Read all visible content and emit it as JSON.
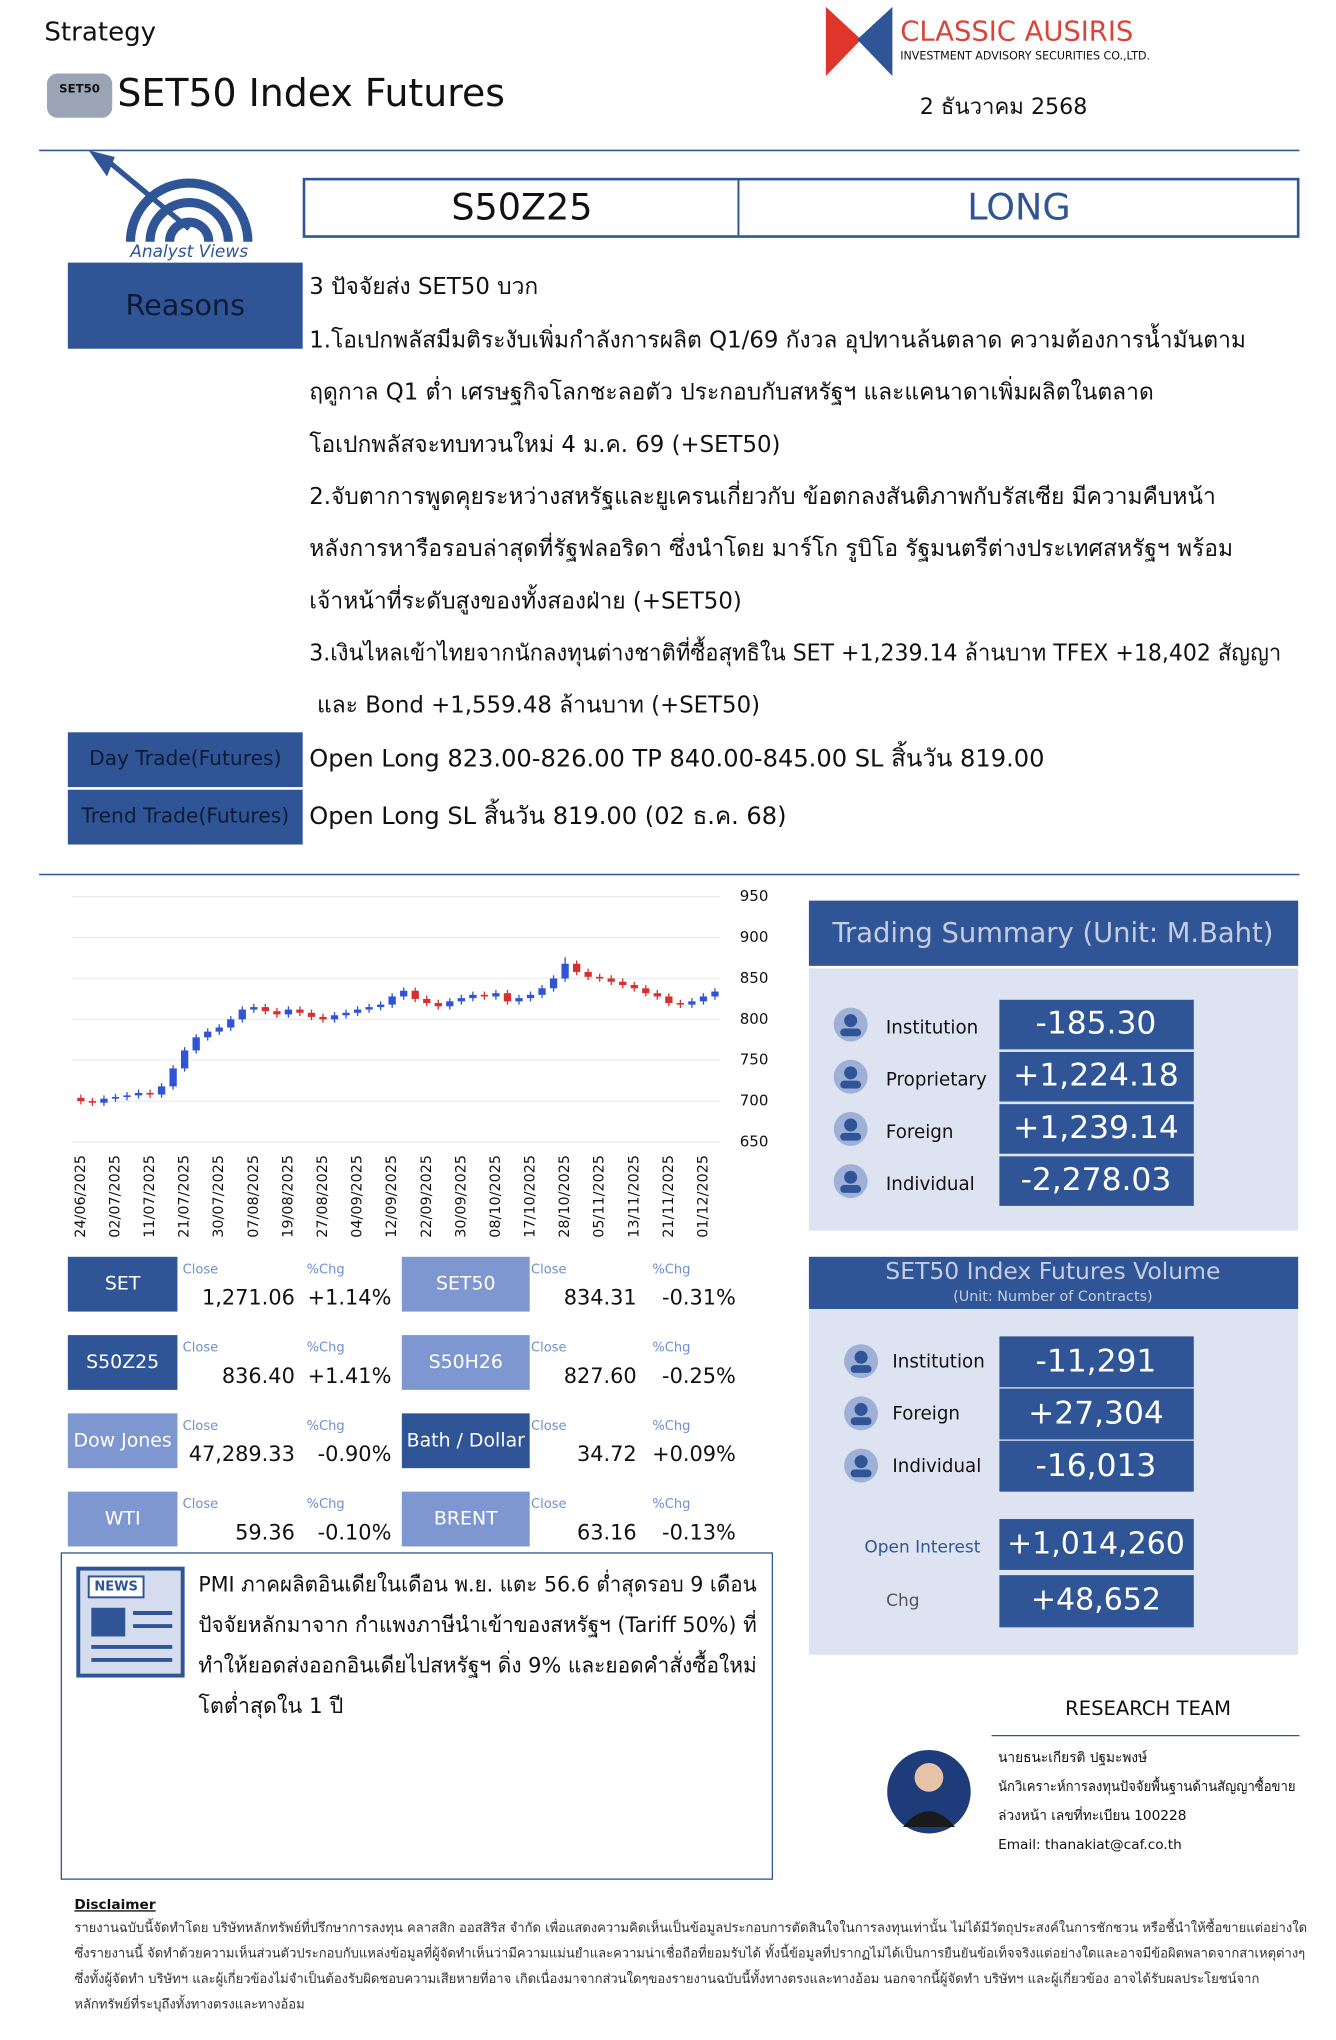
{
  "header": {
    "section": "Strategy",
    "title": "SET50 Index Futures",
    "badge": "SET50",
    "brand": "CLASSIC AUSIRIS",
    "brand_sub": "INVESTMENT ADVISORY SECURITIES CO.,LTD.",
    "date": "2 ธันวาคม 2568"
  },
  "recommendation": {
    "badge": "Analyst Views",
    "symbol": "S50Z25",
    "position": "LONG"
  },
  "reasons": {
    "label": "Reasons",
    "lines": [
      "3 ปัจจัยส่ง SET50 บวก",
      "1.โอเปกพลัสมีมติระงับเพิ่มกำลังการผลิต Q1/69 กังวล อุปทานล้นตลาด ความต้องการน้ำมันตาม",
      "ฤดูกาล Q1 ต่ำ เศรษฐกิจโลกชะลอตัว ประกอบกับสหรัฐฯ และแคนาดาเพิ่มผลิตในตลาด",
      "โอเปกพลัสจะทบทวนใหม่ 4 ม.ค. 69 (+SET50)",
      "2.จับตาการพูดคุยระหว่างสหรัฐและยูเครนเกี่ยวกับ ข้อตกลงสันติภาพกับรัสเซีย มีความคืบหน้า",
      "หลังการหารือรอบล่าสุดที่รัฐฟลอริดา ซึ่งนำโดย มาร์โก รูบิโอ รัฐมนตรีต่างประเทศสหรัฐฯ พร้อม",
      "เจ้าหน้าที่ระดับสูงของทั้งสองฝ่าย (+SET50)",
      "3.เงินไหลเข้าไทยจากนักลงทุนต่างชาติที่ซื้อสุทธิใน SET +1,239.14 ล้านบาท TFEX +18,402 สัญญา",
      "และ Bond +1,559.48 ล้านบาท (+SET50)"
    ]
  },
  "trades": [
    {
      "label": "Day Trade(Futures)",
      "text": "Open Long 823.00-826.00 TP 840.00-845.00 SL สิ้นวัน 819.00"
    },
    {
      "label": "Trend Trade(Futures)",
      "text": "Open Long SL สิ้นวัน 819.00 (02 ธ.ค. 68)"
    }
  ],
  "chart": {
    "type": "candlestick",
    "categories": [
      "24/06/2025",
      null,
      null,
      "02/07/2025",
      null,
      null,
      "11/07/2025",
      null,
      null,
      "21/07/2025",
      null,
      null,
      "30/07/2025",
      null,
      null,
      "07/08/2025",
      null,
      null,
      "19/08/2025",
      null,
      null,
      "27/08/2025",
      null,
      null,
      "04/09/2025",
      null,
      null,
      "12/09/2025",
      null,
      null,
      "22/09/2025",
      null,
      null,
      "30/09/2025",
      null,
      null,
      "08/10/2025",
      null,
      null,
      "17/10/2025",
      null,
      null,
      "28/10/2025",
      null,
      null,
      "05/11/2025",
      null,
      null,
      "13/11/2025",
      null,
      null,
      "21/11/2025",
      null,
      null,
      "01/12/2025",
      null
    ],
    "open": [
      704,
      700,
      698,
      703,
      705,
      707,
      710,
      708,
      718,
      740,
      762,
      778,
      785,
      790,
      800,
      812,
      815,
      810,
      806,
      812,
      808,
      803,
      800,
      805,
      808,
      812,
      815,
      818,
      828,
      835,
      825,
      820,
      816,
      822,
      826,
      830,
      828,
      832,
      822,
      826,
      830,
      838,
      850,
      868,
      858,
      852,
      850,
      846,
      842,
      838,
      832,
      828,
      820,
      818,
      822,
      828
    ],
    "high": [
      708,
      704,
      707,
      709,
      711,
      714,
      714,
      722,
      744,
      766,
      782,
      789,
      794,
      804,
      816,
      819,
      819,
      814,
      816,
      816,
      812,
      807,
      809,
      812,
      816,
      819,
      822,
      832,
      839,
      839,
      829,
      824,
      826,
      830,
      834,
      834,
      836,
      836,
      830,
      834,
      842,
      854,
      876,
      872,
      862,
      856,
      854,
      850,
      846,
      842,
      836,
      832,
      824,
      826,
      832,
      838
    ],
    "low": [
      696,
      694,
      694,
      699,
      701,
      703,
      704,
      704,
      714,
      736,
      758,
      774,
      781,
      786,
      796,
      808,
      806,
      802,
      802,
      804,
      799,
      796,
      796,
      801,
      804,
      808,
      811,
      814,
      824,
      821,
      816,
      812,
      812,
      818,
      822,
      824,
      824,
      818,
      818,
      822,
      826,
      834,
      846,
      854,
      848,
      846,
      842,
      838,
      834,
      828,
      824,
      816,
      814,
      814,
      818,
      824
    ],
    "close": [
      700,
      698,
      703,
      705,
      707,
      710,
      708,
      718,
      740,
      762,
      778,
      785,
      790,
      800,
      812,
      815,
      810,
      806,
      812,
      808,
      803,
      800,
      805,
      808,
      812,
      815,
      818,
      828,
      835,
      825,
      820,
      816,
      822,
      826,
      830,
      828,
      832,
      822,
      826,
      830,
      838,
      850,
      868,
      858,
      852,
      850,
      846,
      842,
      838,
      832,
      828,
      820,
      818,
      822,
      828,
      834
    ],
    "ylim": [
      650,
      950
    ],
    "yticks": [
      650,
      700,
      750,
      800,
      850,
      900,
      950
    ],
    "up_color": "#2f55d4",
    "down_color": "#d9302f",
    "grid": true
  },
  "markets": [
    {
      "name": "SET",
      "close_label": "Close",
      "close": "1,271.06",
      "chg_label": "%Chg",
      "chg": "+1.14%",
      "color": "#2f5597"
    },
    {
      "name": "SET50",
      "close_label": "Close",
      "close": "834.31",
      "chg_label": "%Chg",
      "chg": "-0.31%",
      "color": "#7f97d0"
    },
    {
      "name": "S50Z25",
      "close_label": "Close",
      "close": "836.40",
      "chg_label": "%Chg",
      "chg": "+1.41%",
      "color": "#2f5597"
    },
    {
      "name": "S50H26",
      "close_label": "Close",
      "close": "827.60",
      "chg_label": "%Chg",
      "chg": "-0.25%",
      "color": "#7f97d0"
    },
    {
      "name": "Dow Jones",
      "close_label": "Close",
      "close": "47,289.33",
      "chg_label": "%Chg",
      "chg": "-0.90%",
      "color": "#7f97d0"
    },
    {
      "name": "Bath / Dollar",
      "close_label": "Close",
      "close": "34.72",
      "chg_label": "%Chg",
      "chg": "+0.09%",
      "color": "#2f5597"
    },
    {
      "name": "WTI",
      "close_label": "Close",
      "close": "59.36",
      "chg_label": "%Chg",
      "chg": "-0.10%",
      "color": "#7f97d0"
    },
    {
      "name": "BRENT",
      "close_label": "Close",
      "close": "63.16",
      "chg_label": "%Chg",
      "chg": "-0.13%",
      "color": "#7f97d0"
    }
  ],
  "trading_summary": {
    "title": "Trading Summary (Unit: M.Baht)",
    "rows": [
      {
        "label": "Institution",
        "value": "-185.30"
      },
      {
        "label": "Proprietary",
        "value": "+1,224.18"
      },
      {
        "label": "Foreign",
        "value": "+1,239.14"
      },
      {
        "label": "Individual",
        "value": "-2,278.03"
      }
    ]
  },
  "volume": {
    "title": "SET50 Index Futures Volume",
    "subtitle": "(Unit: Number of Contracts)",
    "rows": [
      {
        "label": "Institution",
        "value": "-11,291"
      },
      {
        "label": "Foreign",
        "value": "+27,304"
      },
      {
        "label": "Individual",
        "value": "-16,013"
      }
    ],
    "open_interest": {
      "label": "Open Interest",
      "value": "+1,014,260"
    },
    "chg": {
      "label": "Chg",
      "value": "+48,652"
    }
  },
  "news": {
    "badge": "NEWS",
    "lines": [
      "PMI ภาคผลิตอินเดียในเดือน พ.ย. แตะ 56.6 ต่ำสุดรอบ 9 เดือน",
      "ปัจจัยหลักมาจาก กำแพงภาษีนำเข้าของสหรัฐฯ (Tariff 50%) ที่",
      "ทำให้ยอดส่งออกอินเดียไปสหรัฐฯ ดิ่ง 9% และยอดคำสั่งซื้อใหม่",
      "โตต่ำสุดใน 1 ปี"
    ]
  },
  "research": {
    "title": "RESEARCH TEAM",
    "lines": [
      "นายธนะเกียรติ ปฐมะพงษ์",
      "นักวิเคราะห์การลงทุนปัจจัยพื้นฐานด้านสัญญาซื้อขาย",
      "ล่วงหน้า เลขที่ทะเบียน 100228",
      "Email: thanakiat@caf.co.th"
    ]
  },
  "disclaimer": {
    "title": "Disclaimer",
    "lines": [
      "รายงานฉบับนี้จัดทำโดย บริษัทหลักทรัพย์ที่ปรึกษาการลงทุน คลาสสิก ออสสิริส จำกัด เพื่อแสดงความคิดเห็นเป็นข้อมูลประกอบการตัดสินใจในการลงทุนเท่านั้น ไม่ได้มีวัตถุประสงค์ในการชักชวน หรือชี้นำให้ซื้อขายแต่อย่างใด",
      "ซึ่งรายงานนี้ จัดทำด้วยความเห็นส่วนตัวประกอบกับแหล่งข้อมูลที่ผู้จัดทำเห็นว่ามีความแม่นยำและความน่าเชื่อถือที่ยอมรับได้ ทั้งนี้ข้อมูลที่ปรากฏไม่ได้เป็นการยืนยันข้อเท็จจริงแต่อย่างใดและอาจมีข้อผิดพลาดจากสาเหตุต่างๆ",
      "ซึ่งทั้งผู้จัดทำ บริษัทฯ และผู้เกี่ยวข้องไม่จำเป็นต้องรับผิดชอบความเสียหายที่อาจ เกิดเนื่องมาจากส่วนใดๆของรายงานฉบับนี้ทั้งทางตรงและทางอ้อม นอกจากนี้ผู้จัดทำ บริษัทฯ และผู้เกี่ยวข้อง อาจได้รับผลประโยชน์จาก",
      "หลักทรัพย์ที่ระบุถึงทั้งทางตรงและทางอ้อม"
    ]
  }
}
